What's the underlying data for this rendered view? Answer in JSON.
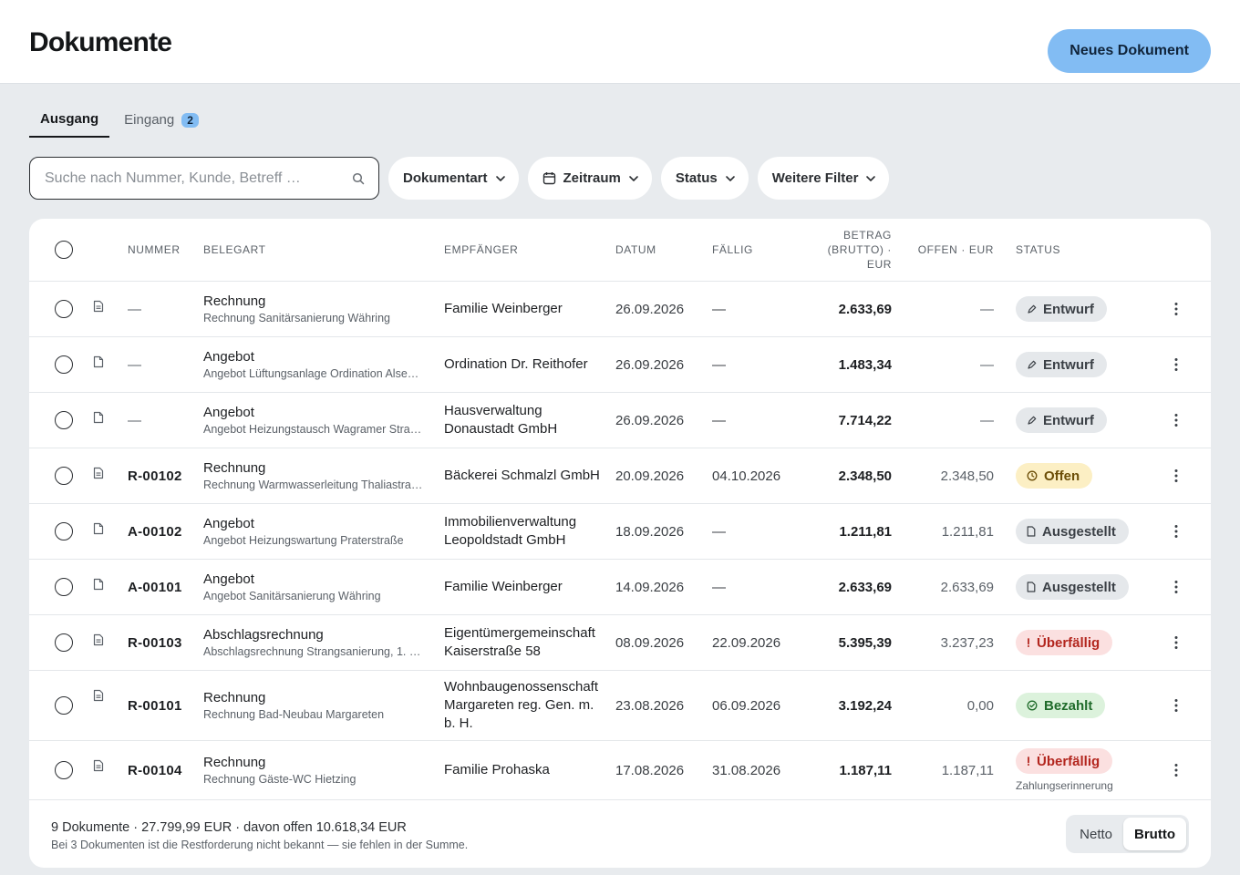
{
  "header": {
    "title": "Dokumente",
    "new_button": "Neues Dokument"
  },
  "tabs": [
    {
      "label": "Ausgang",
      "active": true
    },
    {
      "label": "Eingang",
      "badge": "2",
      "active": false
    }
  ],
  "search": {
    "placeholder": "Suche nach Nummer, Kunde, Betreff …",
    "icon": "search-icon"
  },
  "filters": {
    "doctype": "Dokumentart",
    "period": "Zeitraum",
    "status": "Status",
    "more": "Weitere Filter"
  },
  "columns": {
    "number": "NUMMER",
    "type": "BELEGART",
    "recipient": "EMPFÄNGER",
    "date": "DATUM",
    "due": "FÄLLIG",
    "amount_1": "BETRAG",
    "amount_2": "(BRUTTO) ·",
    "amount_3": "EUR",
    "open": "OFFEN · EUR",
    "status": "STATUS"
  },
  "rows": [
    {
      "number": "—",
      "type": "Rechnung",
      "subject": "Rechnung Sanitärsanierung Währing",
      "recipient": "Familie Weinberger",
      "date": "26.09.2026",
      "due": "—",
      "amount": "2.633,69",
      "open": "—",
      "status": "Entwurf",
      "status_kind": "entwurf",
      "icon": "invoice-icon",
      "note": ""
    },
    {
      "number": "—",
      "type": "Angebot",
      "subject": "Angebot Lüftungsanlage Ordination Alse…",
      "recipient": "Ordination Dr. Reithofer",
      "date": "26.09.2026",
      "due": "—",
      "amount": "1.483,34",
      "open": "—",
      "status": "Entwurf",
      "status_kind": "entwurf",
      "icon": "offer-icon",
      "note": ""
    },
    {
      "number": "—",
      "type": "Angebot",
      "subject": "Angebot Heizungstausch Wagramer Stra…",
      "recipient": "Hausverwaltung Donaustadt GmbH",
      "date": "26.09.2026",
      "due": "—",
      "amount": "7.714,22",
      "open": "—",
      "status": "Entwurf",
      "status_kind": "entwurf",
      "icon": "offer-icon",
      "note": ""
    },
    {
      "number": "R-00102",
      "type": "Rechnung",
      "subject": "Rechnung Warmwasserleitung Thaliastra…",
      "recipient": "Bäckerei Schmalzl GmbH",
      "date": "20.09.2026",
      "due": "04.10.2026",
      "amount": "2.348,50",
      "open": "2.348,50",
      "status": "Offen",
      "status_kind": "offen",
      "icon": "invoice-icon",
      "note": ""
    },
    {
      "number": "A-00102",
      "type": "Angebot",
      "subject": "Angebot Heizungswartung Praterstraße",
      "recipient": "Immobilienverwaltung Leopoldstadt GmbH",
      "date": "18.09.2026",
      "due": "—",
      "amount": "1.211,81",
      "open": "1.211,81",
      "status": "Ausgestellt",
      "status_kind": "ausgestellt",
      "icon": "offer-icon",
      "note": ""
    },
    {
      "number": "A-00101",
      "type": "Angebot",
      "subject": "Angebot Sanitärsanierung Währing",
      "recipient": "Familie Weinberger",
      "date": "14.09.2026",
      "due": "—",
      "amount": "2.633,69",
      "open": "2.633,69",
      "status": "Ausgestellt",
      "status_kind": "ausgestellt",
      "icon": "offer-icon",
      "note": ""
    },
    {
      "number": "R-00103",
      "type": "Abschlagsrechnung",
      "subject": "Abschlagsrechnung Strangsanierung, 1. …",
      "recipient": "Eigentümergemeinschaft Kaiserstraße 58",
      "date": "08.09.2026",
      "due": "22.09.2026",
      "amount": "5.395,39",
      "open": "3.237,23",
      "status": "Überfällig",
      "status_kind": "ueber",
      "icon": "invoice-icon",
      "note": ""
    },
    {
      "number": "R-00101",
      "type": "Rechnung",
      "subject": "Rechnung Bad-Neubau Margareten",
      "recipient": "Wohnbaugenossenschaft Margareten reg. Gen. m. b. H.",
      "date": "23.08.2026",
      "due": "06.09.2026",
      "amount": "3.192,24",
      "open": "0,00",
      "status": "Bezahlt",
      "status_kind": "bezahlt",
      "icon": "invoice-icon",
      "note": ""
    },
    {
      "number": "R-00104",
      "type": "Rechnung",
      "subject": "Rechnung Gäste-WC Hietzing",
      "recipient": "Familie Prohaska",
      "date": "17.08.2026",
      "due": "31.08.2026",
      "amount": "1.187,11",
      "open": "1.187,11",
      "status": "Überfällig",
      "status_kind": "ueber",
      "icon": "invoice-icon",
      "note": "Zahlungserinnerung"
    }
  ],
  "footer": {
    "summary": "9 Dokumente · 27.799,99 EUR · davon offen 10.618,34 EUR",
    "note": "Bei 3 Dokumenten ist die Restforderung nicht bekannt — sie fehlen in der Summe.",
    "toggle": [
      {
        "label": "Netto",
        "active": false
      },
      {
        "label": "Brutto",
        "active": true
      }
    ]
  },
  "colors": {
    "accent": "#82bcf3",
    "background": "#e8ebee",
    "overdue": "#b3261e",
    "paid": "#1f6b2a",
    "open": "#6b4d07"
  }
}
